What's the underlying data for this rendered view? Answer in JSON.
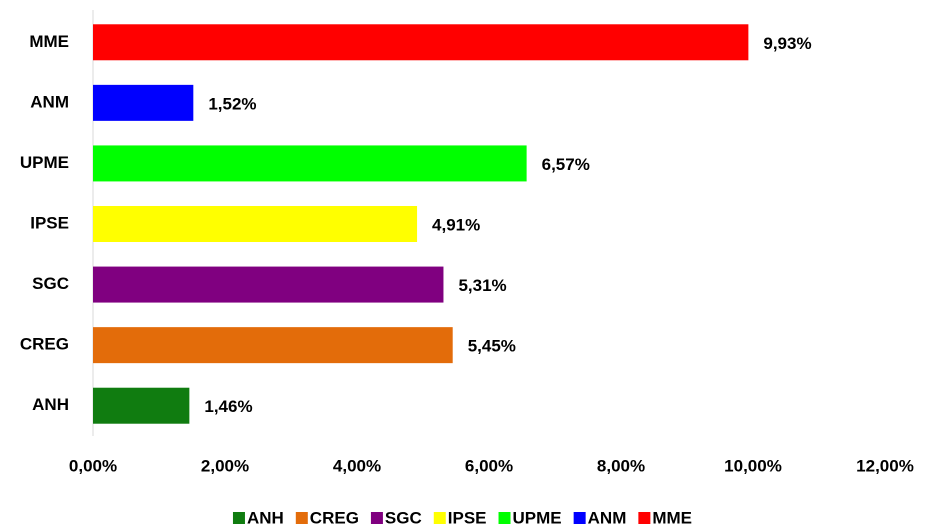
{
  "chart_data": {
    "type": "bar",
    "orientation": "horizontal",
    "categories": [
      "ANH",
      "CREG",
      "SGC",
      "IPSE",
      "UPME",
      "ANM",
      "MME"
    ],
    "values": [
      1.46,
      5.45,
      5.31,
      4.91,
      6.57,
      1.52,
      9.93
    ],
    "value_labels": [
      "1,46%",
      "5,45%",
      "5,31%",
      "4,91%",
      "6,57%",
      "1,52%",
      "9,93%"
    ],
    "colors": [
      "#107c10",
      "#e36c0a",
      "#800080",
      "#ffff00",
      "#00ff00",
      "#0000ff",
      "#ff0000"
    ],
    "xlim": [
      0,
      12
    ],
    "xticks": [
      {
        "value": 0,
        "label": "0,00%"
      },
      {
        "value": 2,
        "label": "2,00%"
      },
      {
        "value": 4,
        "label": "4,00%"
      },
      {
        "value": 6,
        "label": "6,00%"
      },
      {
        "value": 8,
        "label": "8,00%"
      },
      {
        "value": 10,
        "label": "10,00%"
      },
      {
        "value": 12,
        "label": "12,00%"
      }
    ],
    "grid": false,
    "legend": "bottom"
  }
}
